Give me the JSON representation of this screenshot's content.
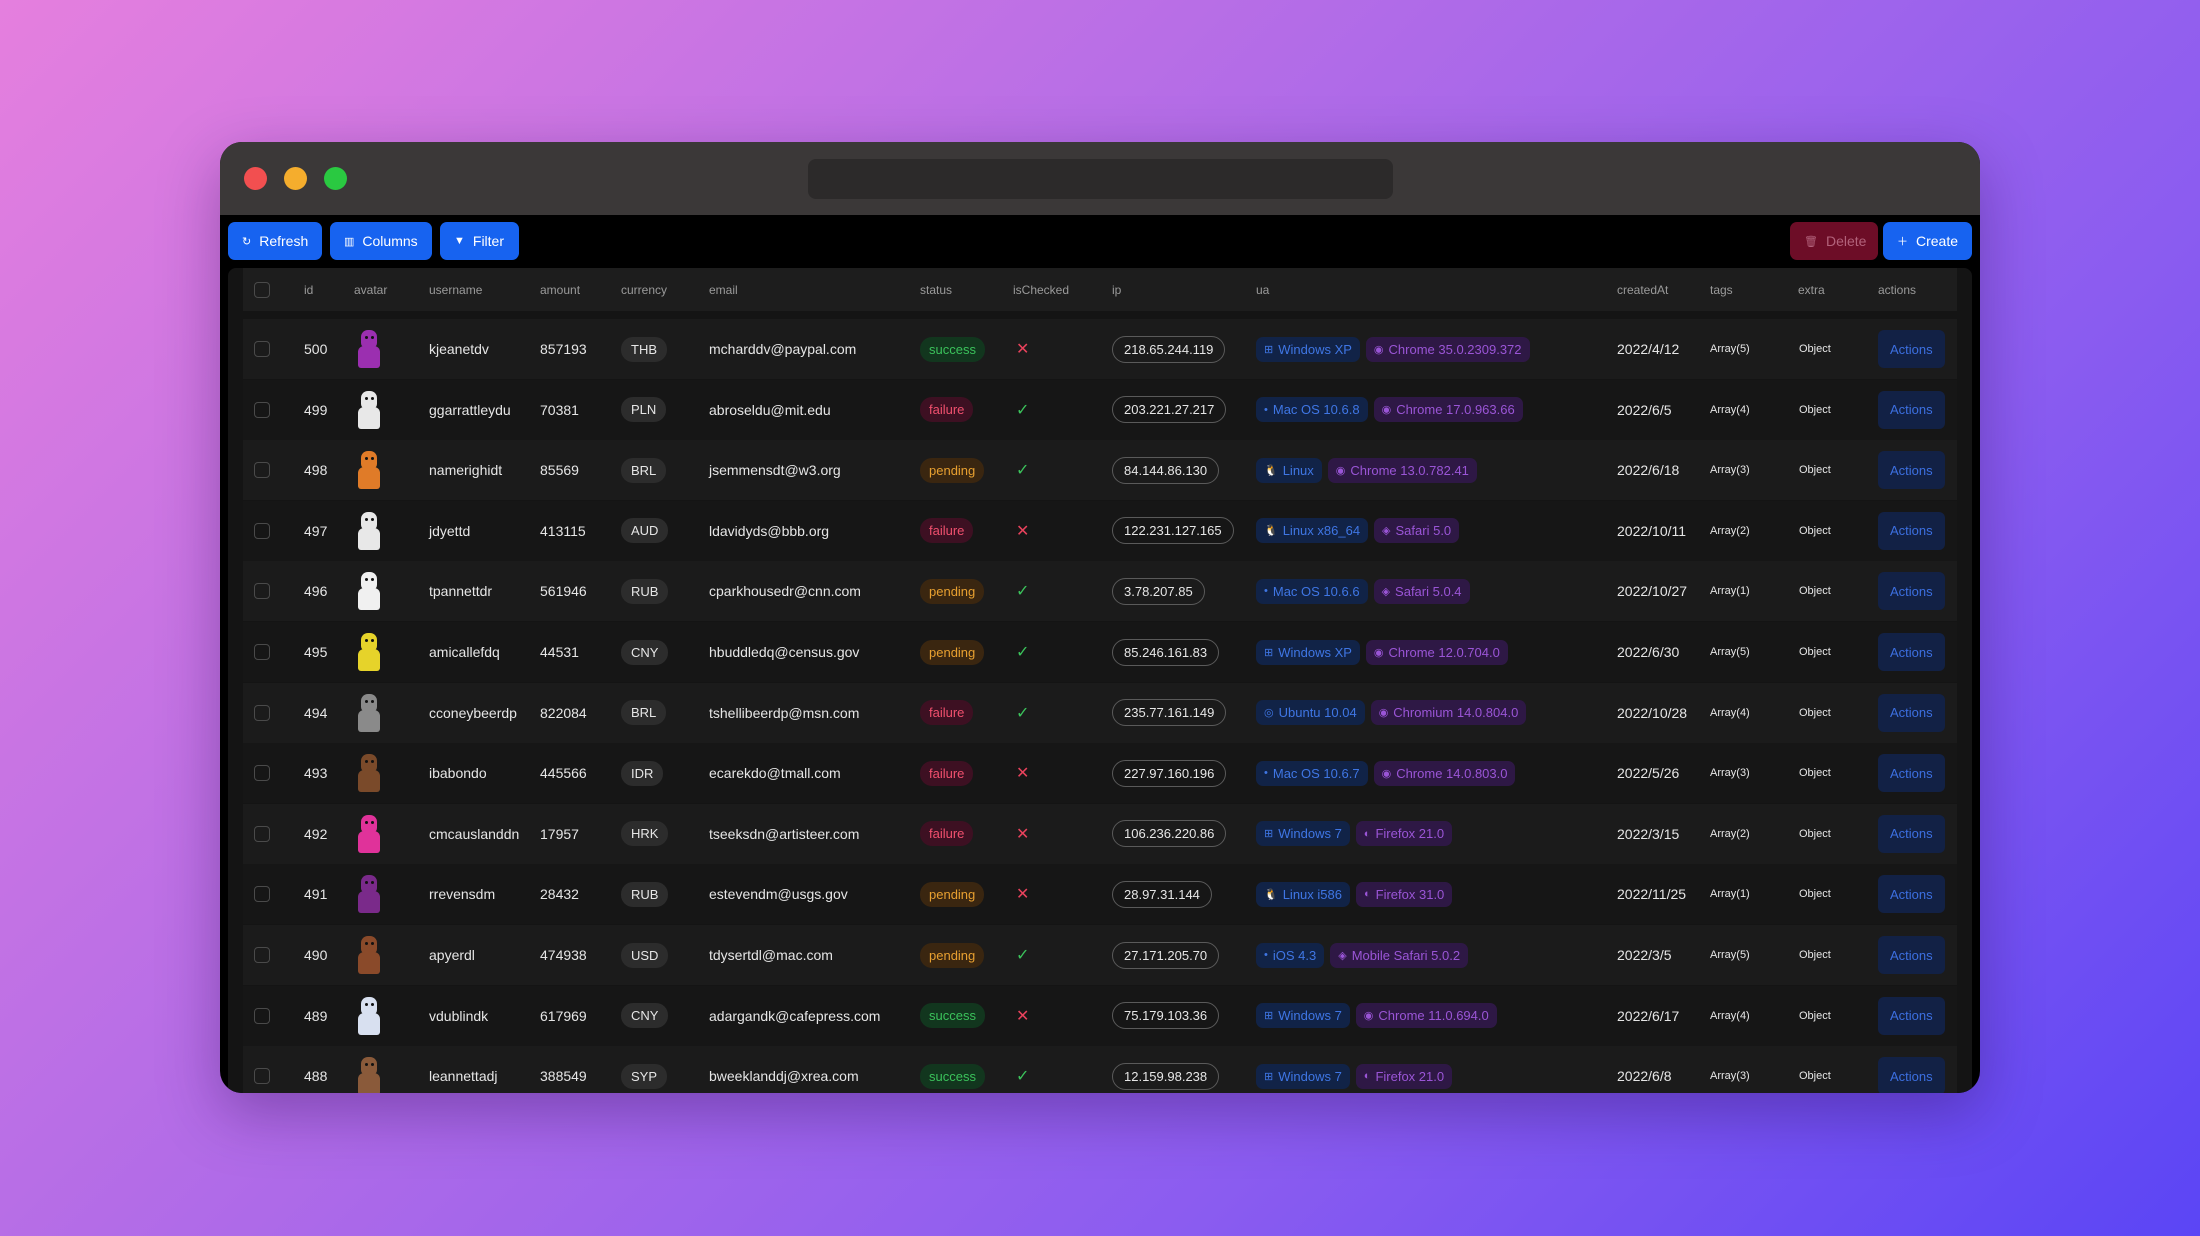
{
  "toolbar": {
    "refresh_label": "Refresh",
    "columns_label": "Columns",
    "filter_label": "Filter",
    "delete_label": "Delete",
    "create_label": "Create"
  },
  "columns": [
    "id",
    "avatar",
    "username",
    "amount",
    "currency",
    "email",
    "status",
    "isChecked",
    "ip",
    "ua",
    "createdAt",
    "tags",
    "extra",
    "actions"
  ],
  "rows": [
    {
      "id": "500",
      "avatar_color": "#9b2fb0",
      "username": "kjeanetdv",
      "amount": "857193",
      "currency": "THB",
      "email": "mcharddv@paypal.com",
      "status": "success",
      "checked": false,
      "ip": "218.65.244.119",
      "os": "Windows XP",
      "os_icon": "windows-icon",
      "browser": "Chrome 35.0.2309.372",
      "browser_icon": "chrome-icon",
      "createdAt": "2022/4/12",
      "tags": "Array(5)",
      "extra": "Object",
      "action": "Actions"
    },
    {
      "id": "499",
      "avatar_color": "#e8e8e8",
      "username": "ggarrattleydu",
      "amount": "70381",
      "currency": "PLN",
      "email": "abroseldu@mit.edu",
      "status": "failure",
      "checked": true,
      "ip": "203.221.27.217",
      "os": "Mac OS 10.6.8",
      "os_icon": "apple-icon",
      "browser": "Chrome 17.0.963.66",
      "browser_icon": "chrome-icon",
      "createdAt": "2022/6/5",
      "tags": "Array(4)",
      "extra": "Object",
      "action": "Actions"
    },
    {
      "id": "498",
      "avatar_color": "#e07b28",
      "username": "namerighidt",
      "amount": "85569",
      "currency": "BRL",
      "email": "jsemmensdt@w3.org",
      "status": "pending",
      "checked": true,
      "ip": "84.144.86.130",
      "os": "Linux",
      "os_icon": "linux-icon",
      "browser": "Chrome 13.0.782.41",
      "browser_icon": "chrome-icon",
      "createdAt": "2022/6/18",
      "tags": "Array(3)",
      "extra": "Object",
      "action": "Actions"
    },
    {
      "id": "497",
      "avatar_color": "#e8e8e8",
      "username": "jdyettd",
      "amount": "413115",
      "currency": "AUD",
      "email": "ldavidyds@bbb.org",
      "status": "failure",
      "checked": false,
      "ip": "122.231.127.165",
      "os": "Linux x86_64",
      "os_icon": "linux-icon",
      "browser": "Safari 5.0",
      "browser_icon": "safari-icon",
      "createdAt": "2022/10/11",
      "tags": "Array(2)",
      "extra": "Object",
      "action": "Actions"
    },
    {
      "id": "496",
      "avatar_color": "#f0f0f0",
      "username": "tpannettdr",
      "amount": "561946",
      "currency": "RUB",
      "email": "cparkhousedr@cnn.com",
      "status": "pending",
      "checked": true,
      "ip": "3.78.207.85",
      "os": "Mac OS 10.6.6",
      "os_icon": "apple-icon",
      "browser": "Safari 5.0.4",
      "browser_icon": "safari-icon",
      "createdAt": "2022/10/27",
      "tags": "Array(1)",
      "extra": "Object",
      "action": "Actions"
    },
    {
      "id": "495",
      "avatar_color": "#e6d32a",
      "username": "amicallefdq",
      "amount": "44531",
      "currency": "CNY",
      "email": "hbuddledq@census.gov",
      "status": "pending",
      "checked": true,
      "ip": "85.246.161.83",
      "os": "Windows XP",
      "os_icon": "windows-icon",
      "browser": "Chrome 12.0.704.0",
      "browser_icon": "chrome-icon",
      "createdAt": "2022/6/30",
      "tags": "Array(5)",
      "extra": "Object",
      "action": "Actions"
    },
    {
      "id": "494",
      "avatar_color": "#8a8a8a",
      "username": "cconeybeerdp",
      "amount": "822084",
      "currency": "BRL",
      "email": "tshellibeerdp@msn.com",
      "status": "failure",
      "checked": true,
      "ip": "235.77.161.149",
      "os": "Ubuntu 10.04",
      "os_icon": "ubuntu-icon",
      "browser": "Chromium 14.0.804.0",
      "browser_icon": "chromium-icon",
      "createdAt": "2022/10/28",
      "tags": "Array(4)",
      "extra": "Object",
      "action": "Actions"
    },
    {
      "id": "493",
      "avatar_color": "#7a4a2a",
      "username": "ibabondo",
      "amount": "445566",
      "currency": "IDR",
      "email": "ecarekdo@tmall.com",
      "status": "failure",
      "checked": false,
      "ip": "227.97.160.196",
      "os": "Mac OS 10.6.7",
      "os_icon": "apple-icon",
      "browser": "Chrome 14.0.803.0",
      "browser_icon": "chrome-icon",
      "createdAt": "2022/5/26",
      "tags": "Array(3)",
      "extra": "Object",
      "action": "Actions"
    },
    {
      "id": "492",
      "avatar_color": "#e0329a",
      "username": "cmcauslanddn",
      "amount": "17957",
      "currency": "HRK",
      "email": "tseeksdn@artisteer.com",
      "status": "failure",
      "checked": false,
      "ip": "106.236.220.86",
      "os": "Windows 7",
      "os_icon": "windows-icon",
      "browser": "Firefox 21.0",
      "browser_icon": "firefox-icon",
      "createdAt": "2022/3/15",
      "tags": "Array(2)",
      "extra": "Object",
      "action": "Actions"
    },
    {
      "id": "491",
      "avatar_color": "#7a2a8a",
      "username": "rrevensdm",
      "amount": "28432",
      "currency": "RUB",
      "email": "estevendm@usgs.gov",
      "status": "pending",
      "checked": false,
      "ip": "28.97.31.144",
      "os": "Linux i586",
      "os_icon": "linux-icon",
      "browser": "Firefox 31.0",
      "browser_icon": "firefox-icon",
      "createdAt": "2022/11/25",
      "tags": "Array(1)",
      "extra": "Object",
      "action": "Actions"
    },
    {
      "id": "490",
      "avatar_color": "#8a4a2a",
      "username": "apyerdl",
      "amount": "474938",
      "currency": "USD",
      "email": "tdysertdl@mac.com",
      "status": "pending",
      "checked": true,
      "ip": "27.171.205.70",
      "os": "iOS 4.3",
      "os_icon": "apple-icon",
      "browser": "Mobile Safari 5.0.2",
      "browser_icon": "safari-icon",
      "createdAt": "2022/3/5",
      "tags": "Array(5)",
      "extra": "Object",
      "action": "Actions"
    },
    {
      "id": "489",
      "avatar_color": "#d8e0f0",
      "username": "vdublindk",
      "amount": "617969",
      "currency": "CNY",
      "email": "adargandk@cafepress.com",
      "status": "success",
      "checked": false,
      "ip": "75.179.103.36",
      "os": "Windows 7",
      "os_icon": "windows-icon",
      "browser": "Chrome 11.0.694.0",
      "browser_icon": "chrome-icon",
      "createdAt": "2022/6/17",
      "tags": "Array(4)",
      "extra": "Object",
      "action": "Actions"
    },
    {
      "id": "488",
      "avatar_color": "#8a5a3a",
      "username": "leannettadj",
      "amount": "388549",
      "currency": "SYP",
      "email": "bweeklanddj@xrea.com",
      "status": "success",
      "checked": true,
      "ip": "12.159.98.238",
      "os": "Windows 7",
      "os_icon": "windows-icon",
      "browser": "Firefox 21.0",
      "browser_icon": "firefox-icon",
      "createdAt": "2022/6/8",
      "tags": "Array(3)",
      "extra": "Object",
      "action": "Actions"
    }
  ]
}
